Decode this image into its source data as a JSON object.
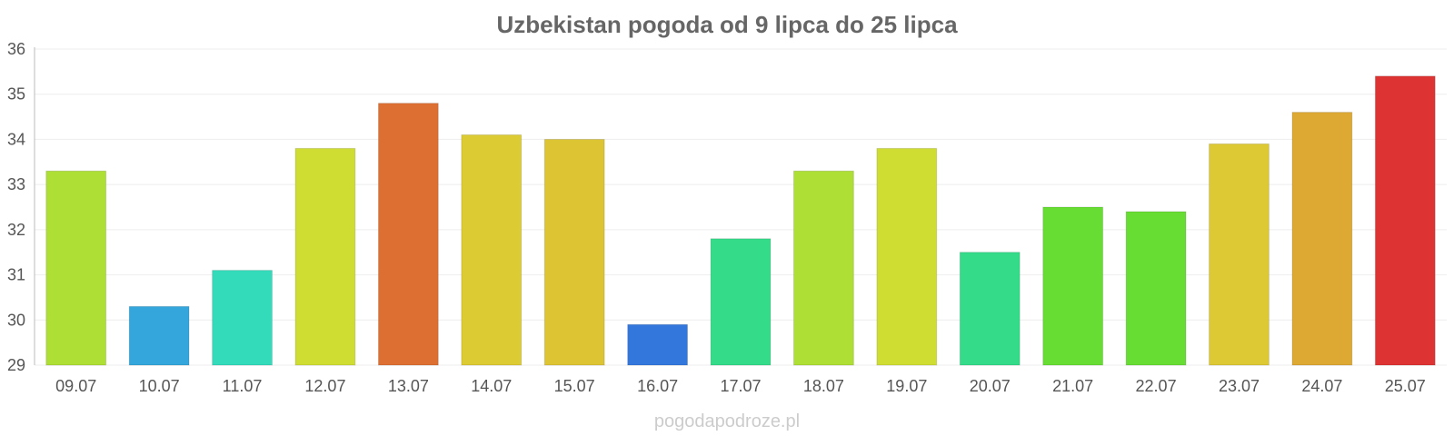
{
  "chart_data": {
    "type": "bar",
    "title": "Uzbekistan pogoda od 9 lipca do 25 lipca",
    "categories": [
      "09.07",
      "10.07",
      "11.07",
      "12.07",
      "13.07",
      "14.07",
      "15.07",
      "16.07",
      "17.07",
      "18.07",
      "19.07",
      "20.07",
      "21.07",
      "22.07",
      "23.07",
      "24.07",
      "25.07"
    ],
    "values": [
      33.3,
      30.3,
      31.1,
      33.8,
      34.8,
      34.1,
      34.0,
      29.9,
      31.8,
      33.3,
      33.8,
      31.5,
      32.5,
      32.4,
      33.9,
      34.6,
      35.4
    ],
    "colors": [
      "#addf34",
      "#34a6db",
      "#34dbbb",
      "#cfdd33",
      "#dd6f33",
      "#ddcb33",
      "#ddc433",
      "#3377dd",
      "#34db89",
      "#addf34",
      "#cfdd33",
      "#34db89",
      "#67dd33",
      "#67dd33",
      "#ddc933",
      "#dda933",
      "#dd3333"
    ],
    "ylim": [
      29,
      36
    ],
    "yticks": [
      29,
      30,
      31,
      32,
      33,
      34,
      35,
      36
    ],
    "grid": true,
    "legend": "none"
  },
  "watermark": "pogodapodroze.pl"
}
